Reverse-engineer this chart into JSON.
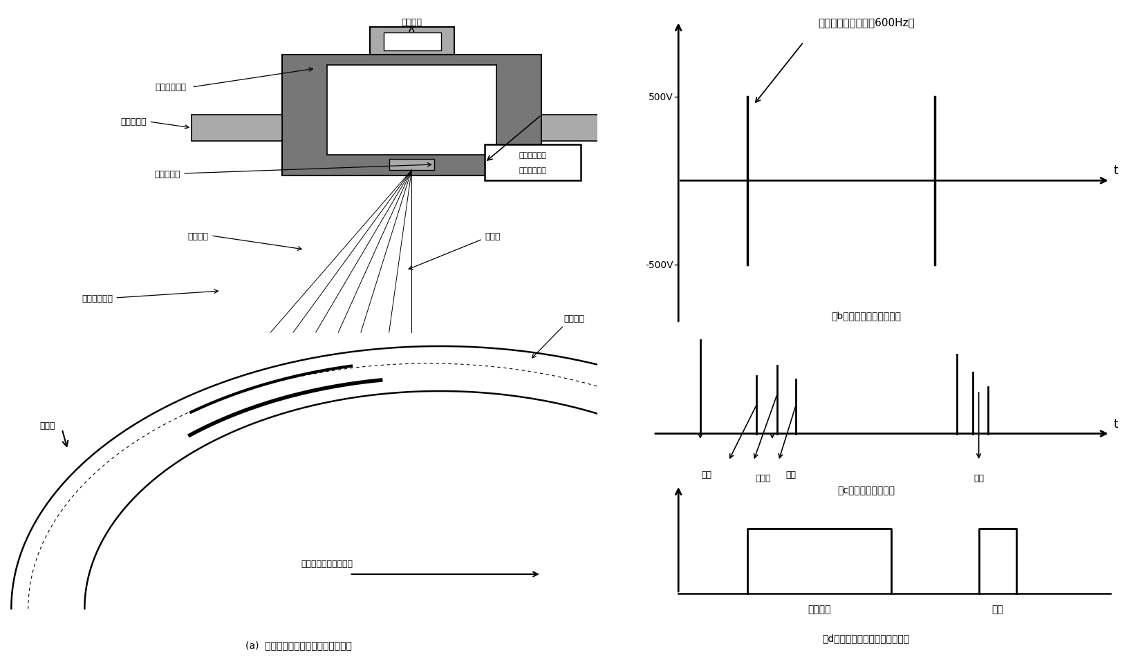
{
  "bg_color": "#ffffff",
  "black": "#000000",
  "dark_gray": "#666666",
  "light_gray": "#bbbbbb",
  "label_a": "(a)  旋转噴淋耦合波超声测厚技术原理",
  "label_b": "（b）宽度极窄的激发脉冲",
  "label_c": "（c）探头输出的信号",
  "label_d": "（d）钗管壁厚的厚度和折叠脉冲",
  "title_b": "冲击函数激发信号（600Hz）",
  "box_label1": "超声发射电路",
  "box_label2": "超声接收电路",
  "transducer_label": "超声探头",
  "coupler_label": "水耦合器腔体",
  "water_inlet_label": "两侧进水口",
  "crystal_label": "钓酸钓晶片",
  "water_column_label": "噴淋水柱",
  "ultrasound_label": "超声波",
  "defect_label": "管体折叠缺陷",
  "rotation_label": "旋转方向",
  "wall_label": "钗管壁",
  "eccentricity_label": "钗管的偏心和壁厚不均",
  "main_wave_label": "主波",
  "interface_wave_label": "界面波",
  "echo_label": "回波",
  "fold_label": "折叠",
  "normal_thickness_label": "正常壁厚",
  "fold_label2": "折叠",
  "500v": "500V",
  "n500v": "-500V",
  "t_label": "t"
}
